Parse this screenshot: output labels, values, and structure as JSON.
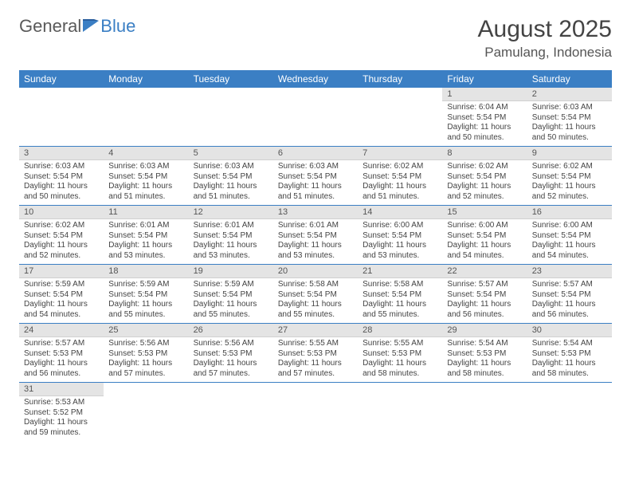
{
  "logo": {
    "text_general": "General",
    "text_blue": "Blue"
  },
  "title": "August 2025",
  "location": "Pamulang, Indonesia",
  "colors": {
    "header_bg": "#3b7fc4",
    "header_text": "#ffffff",
    "daynum_bg": "#e4e4e4",
    "row_divider": "#3b7fc4",
    "body_text": "#444444",
    "page_bg": "#ffffff"
  },
  "typography": {
    "title_fontsize": 30,
    "location_fontsize": 17,
    "weekday_fontsize": 12,
    "daynum_fontsize": 11,
    "cell_fontsize": 10
  },
  "weekdays": [
    "Sunday",
    "Monday",
    "Tuesday",
    "Wednesday",
    "Thursday",
    "Friday",
    "Saturday"
  ],
  "weeks": [
    [
      null,
      null,
      null,
      null,
      null,
      {
        "n": "1",
        "sunrise": "Sunrise: 6:04 AM",
        "sunset": "Sunset: 5:54 PM",
        "daylight": "Daylight: 11 hours and 50 minutes."
      },
      {
        "n": "2",
        "sunrise": "Sunrise: 6:03 AM",
        "sunset": "Sunset: 5:54 PM",
        "daylight": "Daylight: 11 hours and 50 minutes."
      }
    ],
    [
      {
        "n": "3",
        "sunrise": "Sunrise: 6:03 AM",
        "sunset": "Sunset: 5:54 PM",
        "daylight": "Daylight: 11 hours and 50 minutes."
      },
      {
        "n": "4",
        "sunrise": "Sunrise: 6:03 AM",
        "sunset": "Sunset: 5:54 PM",
        "daylight": "Daylight: 11 hours and 51 minutes."
      },
      {
        "n": "5",
        "sunrise": "Sunrise: 6:03 AM",
        "sunset": "Sunset: 5:54 PM",
        "daylight": "Daylight: 11 hours and 51 minutes."
      },
      {
        "n": "6",
        "sunrise": "Sunrise: 6:03 AM",
        "sunset": "Sunset: 5:54 PM",
        "daylight": "Daylight: 11 hours and 51 minutes."
      },
      {
        "n": "7",
        "sunrise": "Sunrise: 6:02 AM",
        "sunset": "Sunset: 5:54 PM",
        "daylight": "Daylight: 11 hours and 51 minutes."
      },
      {
        "n": "8",
        "sunrise": "Sunrise: 6:02 AM",
        "sunset": "Sunset: 5:54 PM",
        "daylight": "Daylight: 11 hours and 52 minutes."
      },
      {
        "n": "9",
        "sunrise": "Sunrise: 6:02 AM",
        "sunset": "Sunset: 5:54 PM",
        "daylight": "Daylight: 11 hours and 52 minutes."
      }
    ],
    [
      {
        "n": "10",
        "sunrise": "Sunrise: 6:02 AM",
        "sunset": "Sunset: 5:54 PM",
        "daylight": "Daylight: 11 hours and 52 minutes."
      },
      {
        "n": "11",
        "sunrise": "Sunrise: 6:01 AM",
        "sunset": "Sunset: 5:54 PM",
        "daylight": "Daylight: 11 hours and 53 minutes."
      },
      {
        "n": "12",
        "sunrise": "Sunrise: 6:01 AM",
        "sunset": "Sunset: 5:54 PM",
        "daylight": "Daylight: 11 hours and 53 minutes."
      },
      {
        "n": "13",
        "sunrise": "Sunrise: 6:01 AM",
        "sunset": "Sunset: 5:54 PM",
        "daylight": "Daylight: 11 hours and 53 minutes."
      },
      {
        "n": "14",
        "sunrise": "Sunrise: 6:00 AM",
        "sunset": "Sunset: 5:54 PM",
        "daylight": "Daylight: 11 hours and 53 minutes."
      },
      {
        "n": "15",
        "sunrise": "Sunrise: 6:00 AM",
        "sunset": "Sunset: 5:54 PM",
        "daylight": "Daylight: 11 hours and 54 minutes."
      },
      {
        "n": "16",
        "sunrise": "Sunrise: 6:00 AM",
        "sunset": "Sunset: 5:54 PM",
        "daylight": "Daylight: 11 hours and 54 minutes."
      }
    ],
    [
      {
        "n": "17",
        "sunrise": "Sunrise: 5:59 AM",
        "sunset": "Sunset: 5:54 PM",
        "daylight": "Daylight: 11 hours and 54 minutes."
      },
      {
        "n": "18",
        "sunrise": "Sunrise: 5:59 AM",
        "sunset": "Sunset: 5:54 PM",
        "daylight": "Daylight: 11 hours and 55 minutes."
      },
      {
        "n": "19",
        "sunrise": "Sunrise: 5:59 AM",
        "sunset": "Sunset: 5:54 PM",
        "daylight": "Daylight: 11 hours and 55 minutes."
      },
      {
        "n": "20",
        "sunrise": "Sunrise: 5:58 AM",
        "sunset": "Sunset: 5:54 PM",
        "daylight": "Daylight: 11 hours and 55 minutes."
      },
      {
        "n": "21",
        "sunrise": "Sunrise: 5:58 AM",
        "sunset": "Sunset: 5:54 PM",
        "daylight": "Daylight: 11 hours and 55 minutes."
      },
      {
        "n": "22",
        "sunrise": "Sunrise: 5:57 AM",
        "sunset": "Sunset: 5:54 PM",
        "daylight": "Daylight: 11 hours and 56 minutes."
      },
      {
        "n": "23",
        "sunrise": "Sunrise: 5:57 AM",
        "sunset": "Sunset: 5:54 PM",
        "daylight": "Daylight: 11 hours and 56 minutes."
      }
    ],
    [
      {
        "n": "24",
        "sunrise": "Sunrise: 5:57 AM",
        "sunset": "Sunset: 5:53 PM",
        "daylight": "Daylight: 11 hours and 56 minutes."
      },
      {
        "n": "25",
        "sunrise": "Sunrise: 5:56 AM",
        "sunset": "Sunset: 5:53 PM",
        "daylight": "Daylight: 11 hours and 57 minutes."
      },
      {
        "n": "26",
        "sunrise": "Sunrise: 5:56 AM",
        "sunset": "Sunset: 5:53 PM",
        "daylight": "Daylight: 11 hours and 57 minutes."
      },
      {
        "n": "27",
        "sunrise": "Sunrise: 5:55 AM",
        "sunset": "Sunset: 5:53 PM",
        "daylight": "Daylight: 11 hours and 57 minutes."
      },
      {
        "n": "28",
        "sunrise": "Sunrise: 5:55 AM",
        "sunset": "Sunset: 5:53 PM",
        "daylight": "Daylight: 11 hours and 58 minutes."
      },
      {
        "n": "29",
        "sunrise": "Sunrise: 5:54 AM",
        "sunset": "Sunset: 5:53 PM",
        "daylight": "Daylight: 11 hours and 58 minutes."
      },
      {
        "n": "30",
        "sunrise": "Sunrise: 5:54 AM",
        "sunset": "Sunset: 5:53 PM",
        "daylight": "Daylight: 11 hours and 58 minutes."
      }
    ],
    [
      {
        "n": "31",
        "sunrise": "Sunrise: 5:53 AM",
        "sunset": "Sunset: 5:52 PM",
        "daylight": "Daylight: 11 hours and 59 minutes."
      },
      null,
      null,
      null,
      null,
      null,
      null
    ]
  ]
}
